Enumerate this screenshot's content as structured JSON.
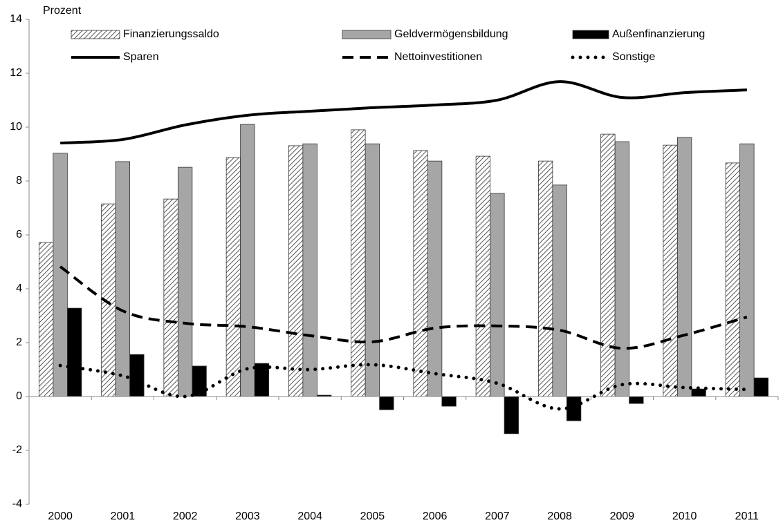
{
  "chart_data": {
    "type": "bar",
    "y_label": "Prozent",
    "categories": [
      "2000",
      "2001",
      "2002",
      "2003",
      "2004",
      "2005",
      "2006",
      "2007",
      "2008",
      "2009",
      "2010",
      "2011"
    ],
    "ylim": [
      -4,
      14
    ],
    "yticks": [
      -4,
      -2,
      0,
      2,
      4,
      6,
      8,
      10,
      12,
      14
    ],
    "grid": false,
    "series": [
      {
        "name": "Finanzierungssaldo",
        "type": "bar",
        "color": "#ffffff",
        "hatch": true,
        "values": [
          5.72,
          7.15,
          7.33,
          8.87,
          9.31,
          9.9,
          9.13,
          8.92,
          8.74,
          9.74,
          9.33,
          8.67
        ]
      },
      {
        "name": "Geldvermögensbildung",
        "type": "bar",
        "color": "#a6a6a6",
        "hatch": false,
        "values": [
          9.03,
          8.72,
          8.51,
          10.1,
          9.38,
          9.38,
          8.74,
          7.54,
          7.85,
          9.46,
          9.62,
          9.38
        ]
      },
      {
        "name": "Außenfinanzierung",
        "type": "bar",
        "color": "#000000",
        "hatch": false,
        "values": [
          3.28,
          1.56,
          1.13,
          1.23,
          0.05,
          -0.49,
          -0.36,
          -1.38,
          -0.9,
          -0.26,
          0.28,
          0.69
        ]
      },
      {
        "name": "Sparen",
        "type": "line",
        "color": "#000000",
        "dash": "solid",
        "values": [
          9.41,
          9.54,
          10.08,
          10.44,
          10.59,
          10.72,
          10.82,
          11.0,
          11.69,
          11.1,
          11.28,
          11.38
        ]
      },
      {
        "name": "Nettoinvestitionen",
        "type": "line",
        "color": "#000000",
        "dash": "dashed",
        "values": [
          4.82,
          3.18,
          2.72,
          2.59,
          2.26,
          2.03,
          2.54,
          2.62,
          2.46,
          1.79,
          2.28,
          2.95
        ]
      },
      {
        "name": "Sonstige",
        "type": "line",
        "color": "#000000",
        "dash": "dotted",
        "values": [
          1.15,
          0.77,
          0.0,
          1.03,
          1.0,
          1.18,
          0.85,
          0.49,
          -0.46,
          0.44,
          0.33,
          0.26
        ]
      }
    ]
  }
}
